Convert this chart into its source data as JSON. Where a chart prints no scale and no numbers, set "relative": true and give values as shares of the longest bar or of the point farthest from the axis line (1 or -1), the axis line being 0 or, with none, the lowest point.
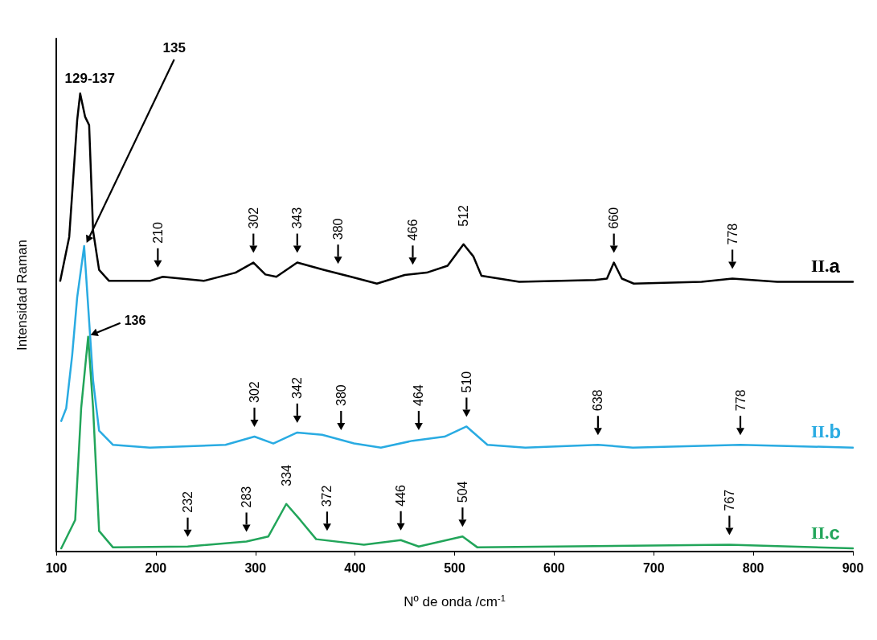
{
  "chart_data": {
    "type": "line",
    "relative": true,
    "xlabel": "Nº de onda /cm$^{-1}$",
    "ylabel": "Intensidad Raman",
    "xlim": [
      100,
      900
    ],
    "xticks": [
      100,
      200,
      300,
      400,
      500,
      600,
      700,
      800,
      900
    ],
    "grid": false,
    "legend": false,
    "marker": "none",
    "line_style": "solid",
    "series": [
      {
        "name": "II.a",
        "color": "#000000",
        "x": [
          104,
          113,
          121,
          124,
          129,
          133,
          137,
          143,
          153,
          194,
          207,
          248,
          280,
          298,
          310,
          321,
          342,
          369,
          396,
          422,
          450,
          472,
          493,
          509,
          519,
          527,
          565,
          641,
          653,
          660,
          668,
          680,
          748,
          779,
          824,
          900
        ],
        "values": [
          0.591,
          0.687,
          0.942,
          1.0,
          0.949,
          0.931,
          0.7,
          0.615,
          0.591,
          0.591,
          0.6,
          0.591,
          0.609,
          0.631,
          0.605,
          0.6,
          0.631,
          0.615,
          0.6,
          0.585,
          0.604,
          0.609,
          0.624,
          0.671,
          0.644,
          0.602,
          0.589,
          0.593,
          0.596,
          0.631,
          0.596,
          0.585,
          0.589,
          0.596,
          0.589,
          0.589
        ]
      },
      {
        "name": "II.b",
        "color": "#29abe2",
        "x": [
          105,
          110,
          116,
          121,
          128,
          137,
          143,
          157,
          194,
          270,
          299,
          318,
          342,
          367,
          399,
          426,
          458,
          490,
          512,
          533,
          571,
          644,
          679,
          787,
          900
        ],
        "values": [
          0.285,
          0.313,
          0.429,
          0.555,
          0.667,
          0.373,
          0.264,
          0.233,
          0.227,
          0.233,
          0.251,
          0.236,
          0.26,
          0.255,
          0.236,
          0.227,
          0.242,
          0.251,
          0.273,
          0.233,
          0.227,
          0.233,
          0.227,
          0.233,
          0.227
        ]
      },
      {
        "name": "II.c",
        "color": "#22a55a",
        "x": [
          105,
          119,
          125,
          132,
          137,
          143,
          157,
          232,
          291,
          313,
          331,
          345,
          361,
          409,
          446,
          464,
          508,
          523,
          776,
          900
        ],
        "values": [
          0.007,
          0.069,
          0.313,
          0.469,
          0.313,
          0.045,
          0.009,
          0.011,
          0.022,
          0.033,
          0.104,
          0.069,
          0.027,
          0.015,
          0.025,
          0.011,
          0.033,
          0.009,
          0.015,
          0.007
        ]
      }
    ],
    "annotations": [
      {
        "text": "129-137",
        "x": 124,
        "y": 1.0
      },
      "135",
      {
        "text": "210",
        "x": 202,
        "y": 0.599
      },
      {
        "text": "302",
        "x": 298,
        "y": 0.631
      },
      {
        "text": "343",
        "x": 342,
        "y": 0.631
      },
      {
        "text": "380",
        "x": 383,
        "y": 0.607
      },
      {
        "text": "466",
        "x": 458,
        "y": 0.605
      },
      {
        "text": "512",
        "x": 509,
        "y": 0.671
      },
      {
        "text": "660",
        "x": 660,
        "y": 0.631
      },
      {
        "text": "778",
        "x": 779,
        "y": 0.596
      },
      {
        "text": "136",
        "x": 132,
        "y": 0.469
      },
      {
        "text": "302",
        "x": 299,
        "y": 0.251
      },
      {
        "text": "342",
        "x": 342,
        "y": 0.26
      },
      {
        "text": "380",
        "x": 386,
        "y": 0.244
      },
      {
        "text": "464",
        "x": 464,
        "y": 0.244
      },
      {
        "text": "510",
        "x": 512,
        "y": 0.273
      },
      {
        "text": "638",
        "x": 644,
        "y": 0.233
      },
      {
        "text": "778",
        "x": 787,
        "y": 0.233
      },
      {
        "text": "232",
        "x": 232,
        "y": 0.011
      },
      {
        "text": "283",
        "x": 291,
        "y": 0.022
      },
      {
        "text": "334",
        "x": 331,
        "y": 0.104
      },
      {
        "text": "372",
        "x": 372,
        "y": 0.024
      },
      {
        "text": "446",
        "x": 446,
        "y": 0.025
      },
      {
        "text": "504",
        "x": 508,
        "y": 0.033
      },
      {
        "text": "767",
        "x": 776,
        "y": 0.015
      }
    ]
  }
}
